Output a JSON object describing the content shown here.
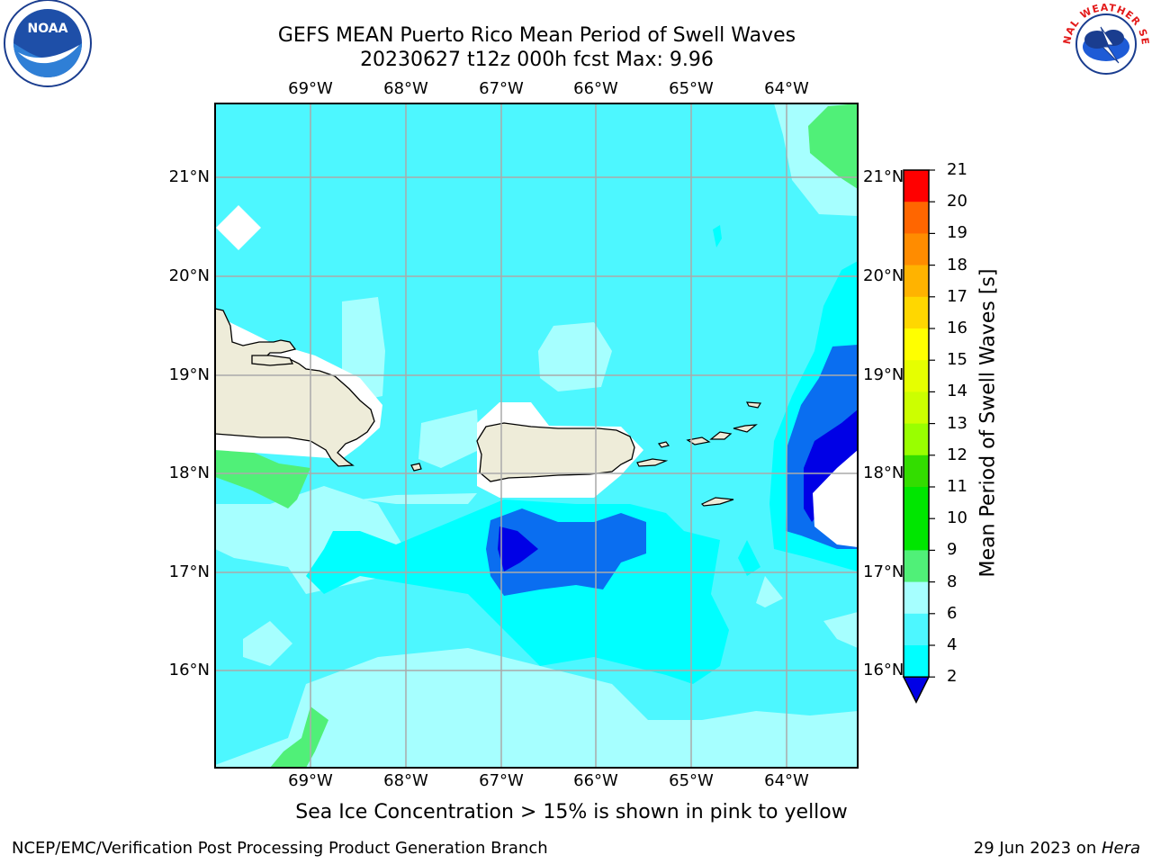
{
  "header": {
    "title_line1": "GEFS MEAN Puerto Rico Mean Period of Swell Waves",
    "title_line2": "20230627 t12z 000h fcst   Max: 9.96"
  },
  "logos": {
    "left": {
      "name": "noaa-logo",
      "text": "NOAA"
    },
    "right": {
      "name": "nws-logo",
      "text": "NATIONAL WEATHER SERVICE"
    }
  },
  "map": {
    "lon_labels": [
      "69°W",
      "68°W",
      "67°W",
      "66°W",
      "65°W",
      "64°W"
    ],
    "lat_labels": [
      "21°N",
      "20°N",
      "19°N",
      "18°N",
      "17°N",
      "16°N"
    ],
    "land_color": "#eeecd9",
    "colors": {
      "deep_blue": "#0000e6",
      "blue": "#0a6ef0",
      "cyan": "#00ffff",
      "light_cyan": "#4df7ff",
      "pale_cyan": "#a6ffff",
      "green": "#50f078"
    }
  },
  "colorbar": {
    "label": "Mean Period of Swell Waves [s]",
    "ticks": [
      "21",
      "20",
      "19",
      "18",
      "17",
      "16",
      "15",
      "14",
      "13",
      "12",
      "11",
      "10",
      "9",
      "8",
      "6",
      "4",
      "2"
    ],
    "colors": [
      "#ff0000",
      "#ff3300",
      "#ff6600",
      "#ff8c00",
      "#ffb300",
      "#ffd700",
      "#ffff00",
      "#e6ff00",
      "#ccff00",
      "#99ff00",
      "#33dd00",
      "#00e600",
      "#00e600",
      "#50f078",
      "#a6ffff",
      "#4df7ff",
      "#00ffff",
      "#0a6ef0",
      "#0000e6"
    ]
  },
  "footnote": "Sea Ice Concentration > 15% is shown in pink to yellow",
  "footer": {
    "left": "NCEP/EMC/Verification Post Processing Product Generation Branch",
    "right_prefix": "29 Jun 2023 on ",
    "right_host": "Hera"
  }
}
